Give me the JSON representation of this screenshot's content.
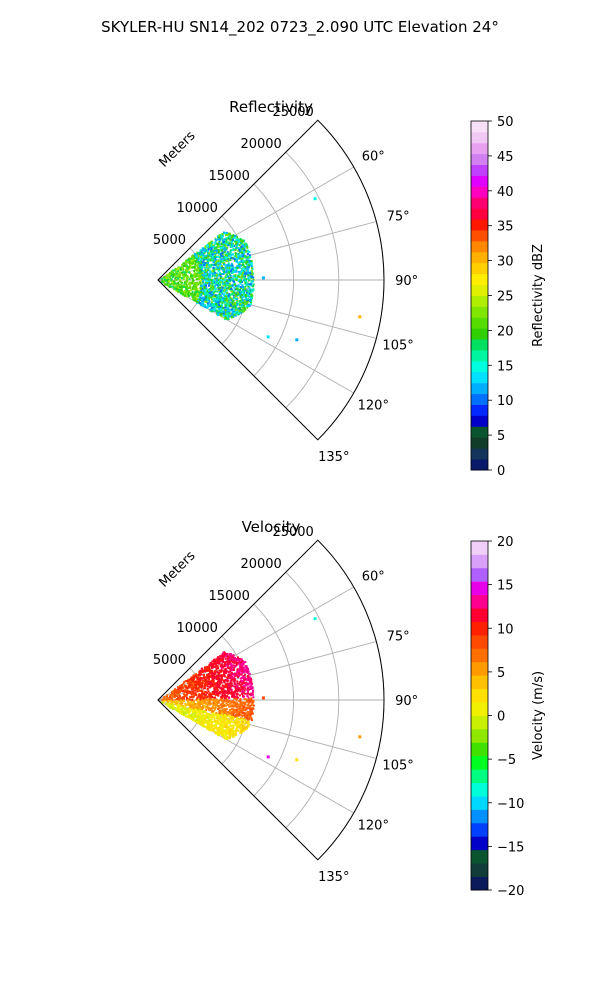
{
  "figure_title": "SKYLER-HU  SN14_202  0723_2.090 UTC Elevation 24°",
  "colors": {
    "grid": "#b0b0b0",
    "frame": "#000000"
  },
  "chart_data": [
    {
      "type": "polar-sector",
      "title": "Reflectivity",
      "radial_label": "Meters",
      "radial_ticks": [
        5000,
        10000,
        15000,
        20000,
        25000
      ],
      "radial_tick_labels": [
        "5000",
        "10000",
        "15000",
        "20000",
        "25000"
      ],
      "rlim": [
        0,
        25000
      ],
      "angle_ticks_deg": [
        60,
        75,
        90,
        105,
        120,
        135
      ],
      "angle_tick_labels": [
        "60°",
        "75°",
        "90°",
        "105°",
        "120°",
        "135°"
      ],
      "theta_range_deg": [
        45,
        135
      ],
      "grid": true,
      "echo_field": {
        "range_extent_m": [
          0,
          10500
        ],
        "dominant_colors": [
          "#66dd00",
          "#00f5a0",
          "#00c8ff"
        ],
        "description_values": "reflectivity mostly 10–25 dBZ"
      },
      "isolated_echoes": [
        {
          "azimuth_deg": 62,
          "range_m": 19500,
          "value": 15
        },
        {
          "azimuth_deg": 100,
          "range_m": 22500,
          "value": 30
        },
        {
          "azimuth_deg": 113,
          "range_m": 16500,
          "value": 12
        },
        {
          "azimuth_deg": 117,
          "range_m": 13500,
          "value": 13
        },
        {
          "azimuth_deg": 88,
          "range_m": 11500,
          "value": 12
        }
      ],
      "colorbar": {
        "label": "Reflectivity dBZ",
        "vmin": 0,
        "vmax": 50,
        "ticks": [
          0,
          5,
          10,
          15,
          20,
          25,
          30,
          35,
          40,
          45,
          50
        ],
        "tick_labels": [
          "0",
          "5",
          "10",
          "15",
          "20",
          "25",
          "30",
          "35",
          "40",
          "45",
          "50"
        ],
        "colormap": "pyart_NWSRef"
      }
    },
    {
      "type": "polar-sector",
      "title": "Velocity",
      "radial_label": "Meters",
      "radial_ticks": [
        5000,
        10000,
        15000,
        20000,
        25000
      ],
      "radial_tick_labels": [
        "5000",
        "10000",
        "15000",
        "20000",
        "25000"
      ],
      "rlim": [
        0,
        25000
      ],
      "angle_ticks_deg": [
        60,
        75,
        90,
        105,
        120,
        135
      ],
      "angle_tick_labels": [
        "60°",
        "75°",
        "90°",
        "105°",
        "120°",
        "135°"
      ],
      "theta_range_deg": [
        45,
        135
      ],
      "grid": true,
      "echo_field": {
        "range_extent_m": [
          0,
          10500
        ],
        "dominant_colors": [
          "#ff2a00",
          "#ff8800",
          "#ffd800",
          "#a8f020"
        ],
        "description_values": "velocity mostly 0–12 m/s"
      },
      "isolated_echoes": [
        {
          "azimuth_deg": 62,
          "range_m": 19500,
          "value": -8
        },
        {
          "azimuth_deg": 100,
          "range_m": 22500,
          "value": 6
        },
        {
          "azimuth_deg": 113,
          "range_m": 16500,
          "value": 2
        },
        {
          "azimuth_deg": 117,
          "range_m": 13500,
          "value": 15
        },
        {
          "azimuth_deg": 88,
          "range_m": 11500,
          "value": 8
        }
      ],
      "colorbar": {
        "label": "Velocity (m/s)",
        "vmin": -20,
        "vmax": 20,
        "ticks": [
          -20,
          -15,
          -10,
          -5,
          0,
          5,
          10,
          15,
          20
        ],
        "tick_labels": [
          "−20",
          "−15",
          "−10",
          "−5",
          "0",
          "5",
          "10",
          "15",
          "20"
        ],
        "colormap": "pyart_BuDRd18"
      }
    }
  ]
}
